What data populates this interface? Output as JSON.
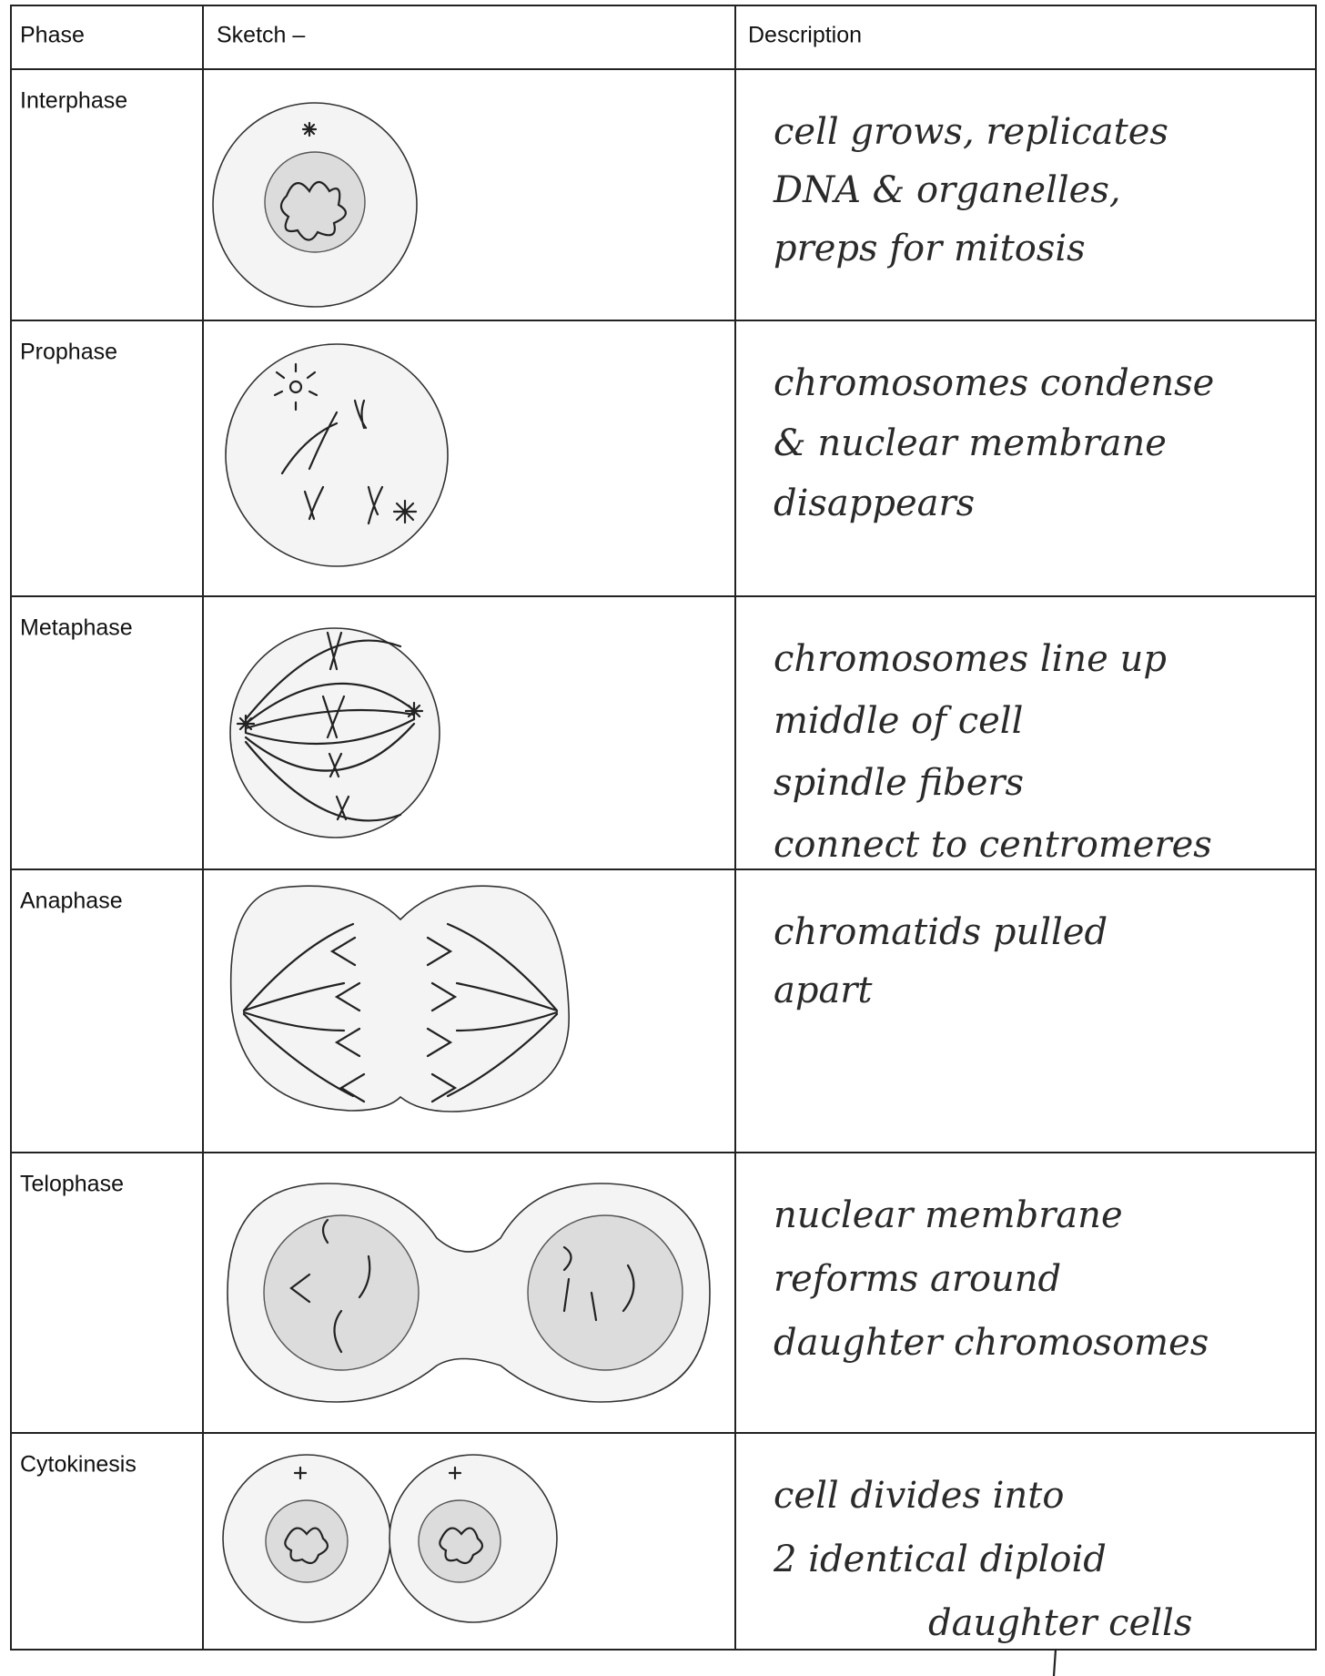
{
  "table": {
    "header": [
      "Phase",
      "Sketch –",
      "Description"
    ],
    "rows": [
      {
        "phase": "Interphase",
        "description": [
          "cell grows, replicates",
          "DNA & organelles,",
          "preps for mitosis"
        ]
      },
      {
        "phase": "Prophase",
        "description": [
          "chromosomes condense",
          "& nuclear membrane",
          "disappears"
        ]
      },
      {
        "phase": "Metaphase",
        "description": [
          "chromosomes line up",
          "middle of cell",
          "spindle fibers",
          "connect to centromeres"
        ]
      },
      {
        "phase": "Anaphase",
        "description": [
          "chromatids pulled",
          "apart"
        ]
      },
      {
        "phase": "Telophase",
        "description": [
          "nuclear membrane",
          "reforms around",
          "daughter chromosomes"
        ]
      },
      {
        "phase": "Cytokinesis",
        "description": [
          "cell divides into",
          "2 identical diploid",
          "daughter cells"
        ]
      }
    ]
  }
}
